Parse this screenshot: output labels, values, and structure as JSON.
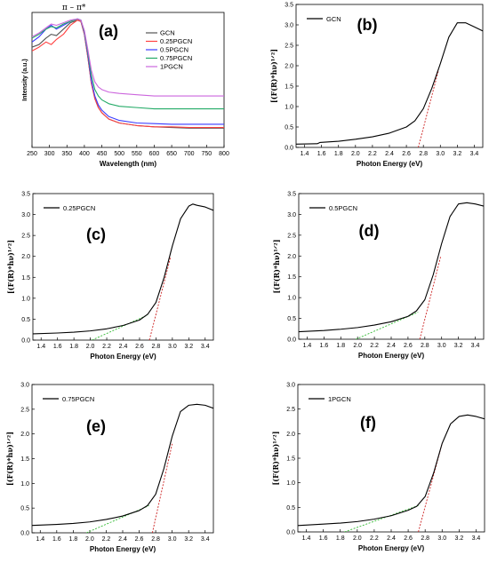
{
  "chart_data": [
    {
      "type": "line",
      "panel_label": "(a)",
      "xlabel": "Wavelength (nm)",
      "ylabel": "Intensity (a.u.)",
      "xlim": [
        250,
        800
      ],
      "ylim": [
        0,
        1.05
      ],
      "xticks": [
        250,
        300,
        350,
        400,
        450,
        500,
        550,
        600,
        650,
        700,
        750,
        800
      ],
      "yticks": [],
      "annotation": "π – π*",
      "legend": "top-right",
      "series": [
        {
          "name": "GCN",
          "color": "#555555",
          "x": [
            250,
            270,
            290,
            305,
            320,
            340,
            360,
            380,
            390,
            400,
            410,
            420,
            430,
            440,
            450,
            470,
            500,
            550,
            600,
            650,
            700,
            750,
            800
          ],
          "y": [
            0.78,
            0.8,
            0.85,
            0.88,
            0.87,
            0.92,
            0.97,
            0.99,
            0.98,
            0.88,
            0.7,
            0.5,
            0.38,
            0.31,
            0.27,
            0.22,
            0.19,
            0.17,
            0.16,
            0.155,
            0.15,
            0.15,
            0.15
          ]
        },
        {
          "name": "0.25PGCN",
          "color": "#ff4040",
          "x": [
            250,
            270,
            290,
            305,
            320,
            340,
            360,
            380,
            390,
            400,
            410,
            420,
            430,
            440,
            450,
            470,
            500,
            550,
            600,
            650,
            700,
            750,
            800
          ],
          "y": [
            0.75,
            0.78,
            0.82,
            0.8,
            0.84,
            0.88,
            0.95,
            0.99,
            0.98,
            0.88,
            0.7,
            0.5,
            0.38,
            0.31,
            0.27,
            0.22,
            0.19,
            0.17,
            0.16,
            0.16,
            0.155,
            0.155,
            0.155
          ]
        },
        {
          "name": "0.5PGCN",
          "color": "#3a3aff",
          "x": [
            250,
            270,
            290,
            305,
            320,
            340,
            360,
            380,
            390,
            400,
            410,
            420,
            430,
            440,
            450,
            470,
            500,
            550,
            600,
            650,
            700,
            750,
            800
          ],
          "y": [
            0.82,
            0.86,
            0.92,
            0.95,
            0.92,
            0.95,
            0.98,
            1.0,
            0.99,
            0.89,
            0.72,
            0.52,
            0.4,
            0.33,
            0.29,
            0.24,
            0.21,
            0.19,
            0.185,
            0.18,
            0.18,
            0.18,
            0.18
          ]
        },
        {
          "name": "0.75PGCN",
          "color": "#22aa66",
          "x": [
            250,
            270,
            290,
            305,
            320,
            340,
            360,
            380,
            390,
            400,
            410,
            420,
            430,
            440,
            450,
            470,
            500,
            550,
            600,
            650,
            700,
            750,
            800
          ],
          "y": [
            0.85,
            0.88,
            0.92,
            0.94,
            0.93,
            0.96,
            0.98,
            1.0,
            0.99,
            0.9,
            0.74,
            0.56,
            0.45,
            0.4,
            0.37,
            0.34,
            0.32,
            0.31,
            0.3,
            0.3,
            0.3,
            0.3,
            0.3
          ]
        },
        {
          "name": "1PGCN",
          "color": "#cc66dd",
          "x": [
            250,
            270,
            290,
            305,
            320,
            340,
            360,
            380,
            390,
            400,
            410,
            420,
            430,
            440,
            450,
            470,
            500,
            550,
            600,
            650,
            700,
            750,
            800
          ],
          "y": [
            0.86,
            0.89,
            0.93,
            0.96,
            0.95,
            0.97,
            0.99,
            1.0,
            0.99,
            0.91,
            0.76,
            0.6,
            0.51,
            0.47,
            0.45,
            0.43,
            0.42,
            0.41,
            0.4,
            0.4,
            0.4,
            0.4,
            0.4
          ]
        }
      ]
    },
    {
      "type": "line",
      "panel_label": "(b)",
      "xlabel": "Photon Energy (eV)",
      "ylabel": "[(F(R)*hν)¹ᐟ²]",
      "xlim": [
        1.3,
        3.5
      ],
      "ylim": [
        0,
        3.5
      ],
      "xticks": [
        1.4,
        1.6,
        1.8,
        2.0,
        2.2,
        2.4,
        2.6,
        2.8,
        3.0,
        3.2,
        3.4
      ],
      "yticks": [
        0.0,
        0.5,
        1.0,
        1.5,
        2.0,
        2.5,
        3.0,
        3.5
      ],
      "legend": "top-left",
      "series": [
        {
          "name": "GCN",
          "color": "#000000",
          "x": [
            1.3,
            1.55,
            1.58,
            1.8,
            2.0,
            2.2,
            2.4,
            2.6,
            2.7,
            2.8,
            2.9,
            3.0,
            3.1,
            3.2,
            3.3,
            3.4,
            3.5
          ],
          "y": [
            0.08,
            0.09,
            0.12,
            0.15,
            0.2,
            0.26,
            0.35,
            0.5,
            0.65,
            0.95,
            1.45,
            2.05,
            2.7,
            3.05,
            3.05,
            2.95,
            2.85
          ]
        }
      ],
      "fits": [
        {
          "color": "#cc2222",
          "x": [
            2.74,
            2.98
          ],
          "y": [
            0.0,
            1.9
          ]
        }
      ]
    },
    {
      "type": "line",
      "panel_label": "(c)",
      "xlabel": "Photon Energy (eV)",
      "ylabel": "[(F(R)*hν)¹ᐟ²]",
      "xlim": [
        1.3,
        3.5
      ],
      "ylim": [
        0,
        3.5
      ],
      "xticks": [
        1.4,
        1.6,
        1.8,
        2.0,
        2.2,
        2.4,
        2.6,
        2.8,
        3.0,
        3.2,
        3.4
      ],
      "yticks": [
        0.0,
        0.5,
        1.0,
        1.5,
        2.0,
        2.5,
        3.0,
        3.5
      ],
      "legend": "top-left",
      "series": [
        {
          "name": "0.25PGCN",
          "color": "#000000",
          "x": [
            1.3,
            1.6,
            1.8,
            2.0,
            2.2,
            2.4,
            2.6,
            2.7,
            2.8,
            2.9,
            3.0,
            3.1,
            3.2,
            3.25,
            3.3,
            3.4,
            3.5
          ],
          "y": [
            0.15,
            0.17,
            0.19,
            0.22,
            0.27,
            0.35,
            0.48,
            0.62,
            0.9,
            1.5,
            2.25,
            2.9,
            3.2,
            3.25,
            3.22,
            3.18,
            3.1
          ]
        }
      ],
      "fits": [
        {
          "color": "#33bb33",
          "x": [
            2.02,
            2.7
          ],
          "y": [
            0.0,
            0.6
          ]
        },
        {
          "color": "#cc2222",
          "x": [
            2.72,
            2.98
          ],
          "y": [
            0.0,
            2.0
          ]
        }
      ]
    },
    {
      "type": "line",
      "panel_label": "(d)",
      "xlabel": "Photon Energy (eV)",
      "ylabel": "[(F(R)*hν)¹ᐟ²]",
      "xlim": [
        1.3,
        3.5
      ],
      "ylim": [
        0,
        3.5
      ],
      "xticks": [
        1.4,
        1.6,
        1.8,
        2.0,
        2.2,
        2.4,
        2.6,
        2.8,
        3.0,
        3.2,
        3.4
      ],
      "yticks": [
        0.0,
        0.5,
        1.0,
        1.5,
        2.0,
        2.5,
        3.0,
        3.5
      ],
      "legend": "top-left",
      "series": [
        {
          "name": "0.5PGCN",
          "color": "#000000",
          "x": [
            1.3,
            1.6,
            1.8,
            2.0,
            2.2,
            2.4,
            2.6,
            2.7,
            2.8,
            2.9,
            3.0,
            3.1,
            3.2,
            3.3,
            3.4,
            3.5
          ],
          "y": [
            0.18,
            0.21,
            0.24,
            0.28,
            0.34,
            0.42,
            0.55,
            0.68,
            0.95,
            1.55,
            2.3,
            2.95,
            3.25,
            3.28,
            3.25,
            3.2
          ]
        }
      ],
      "fits": [
        {
          "color": "#33bb33",
          "x": [
            1.98,
            2.72
          ],
          "y": [
            0.0,
            0.65
          ]
        },
        {
          "color": "#cc2222",
          "x": [
            2.74,
            2.99
          ],
          "y": [
            0.0,
            2.0
          ]
        }
      ]
    },
    {
      "type": "line",
      "panel_label": "(e)",
      "xlabel": "Photon Energy (eV)",
      "ylabel": "[(F(R)*hν)¹ᐟ²]",
      "xlim": [
        1.3,
        3.5
      ],
      "ylim": [
        0,
        3.0
      ],
      "xticks": [
        1.4,
        1.6,
        1.8,
        2.0,
        2.2,
        2.4,
        2.6,
        2.8,
        3.0,
        3.2,
        3.4
      ],
      "yticks": [
        0.0,
        0.5,
        1.0,
        1.5,
        2.0,
        2.5,
        3.0
      ],
      "legend": "top-left",
      "series": [
        {
          "name": "0.75PGCN",
          "color": "#000000",
          "x": [
            1.3,
            1.6,
            1.8,
            2.0,
            2.2,
            2.4,
            2.6,
            2.7,
            2.8,
            2.9,
            3.0,
            3.1,
            3.2,
            3.3,
            3.4,
            3.5
          ],
          "y": [
            0.15,
            0.17,
            0.19,
            0.22,
            0.27,
            0.34,
            0.45,
            0.55,
            0.78,
            1.3,
            1.95,
            2.45,
            2.58,
            2.6,
            2.58,
            2.52
          ]
        }
      ],
      "fits": [
        {
          "color": "#33bb33",
          "x": [
            1.96,
            2.72
          ],
          "y": [
            0.0,
            0.55
          ]
        },
        {
          "color": "#cc2222",
          "x": [
            2.76,
            3.0
          ],
          "y": [
            0.0,
            1.8
          ]
        }
      ]
    },
    {
      "type": "line",
      "panel_label": "(f)",
      "xlabel": "Photon Energy (eV)",
      "ylabel": "[(F(R)*hν)¹ᐟ²]",
      "xlim": [
        1.3,
        3.5
      ],
      "ylim": [
        0,
        3.0
      ],
      "xticks": [
        1.4,
        1.6,
        1.8,
        2.0,
        2.2,
        2.4,
        2.6,
        2.8,
        3.0,
        3.2,
        3.4
      ],
      "yticks": [
        0.0,
        0.5,
        1.0,
        1.5,
        2.0,
        2.5,
        3.0
      ],
      "legend": "top-left",
      "series": [
        {
          "name": "1PGCN",
          "color": "#000000",
          "x": [
            1.3,
            1.6,
            1.8,
            2.0,
            2.2,
            2.4,
            2.6,
            2.7,
            2.8,
            2.9,
            3.0,
            3.1,
            3.2,
            3.3,
            3.4,
            3.5
          ],
          "y": [
            0.13,
            0.16,
            0.18,
            0.21,
            0.26,
            0.33,
            0.44,
            0.52,
            0.72,
            1.2,
            1.8,
            2.2,
            2.35,
            2.38,
            2.35,
            2.3
          ]
        }
      ],
      "fits": [
        {
          "color": "#33bb33",
          "x": [
            1.85,
            2.74
          ],
          "y": [
            0.0,
            0.55
          ]
        },
        {
          "color": "#cc2222",
          "x": [
            2.72,
            3.0
          ],
          "y": [
            0.0,
            1.8
          ]
        }
      ]
    }
  ]
}
